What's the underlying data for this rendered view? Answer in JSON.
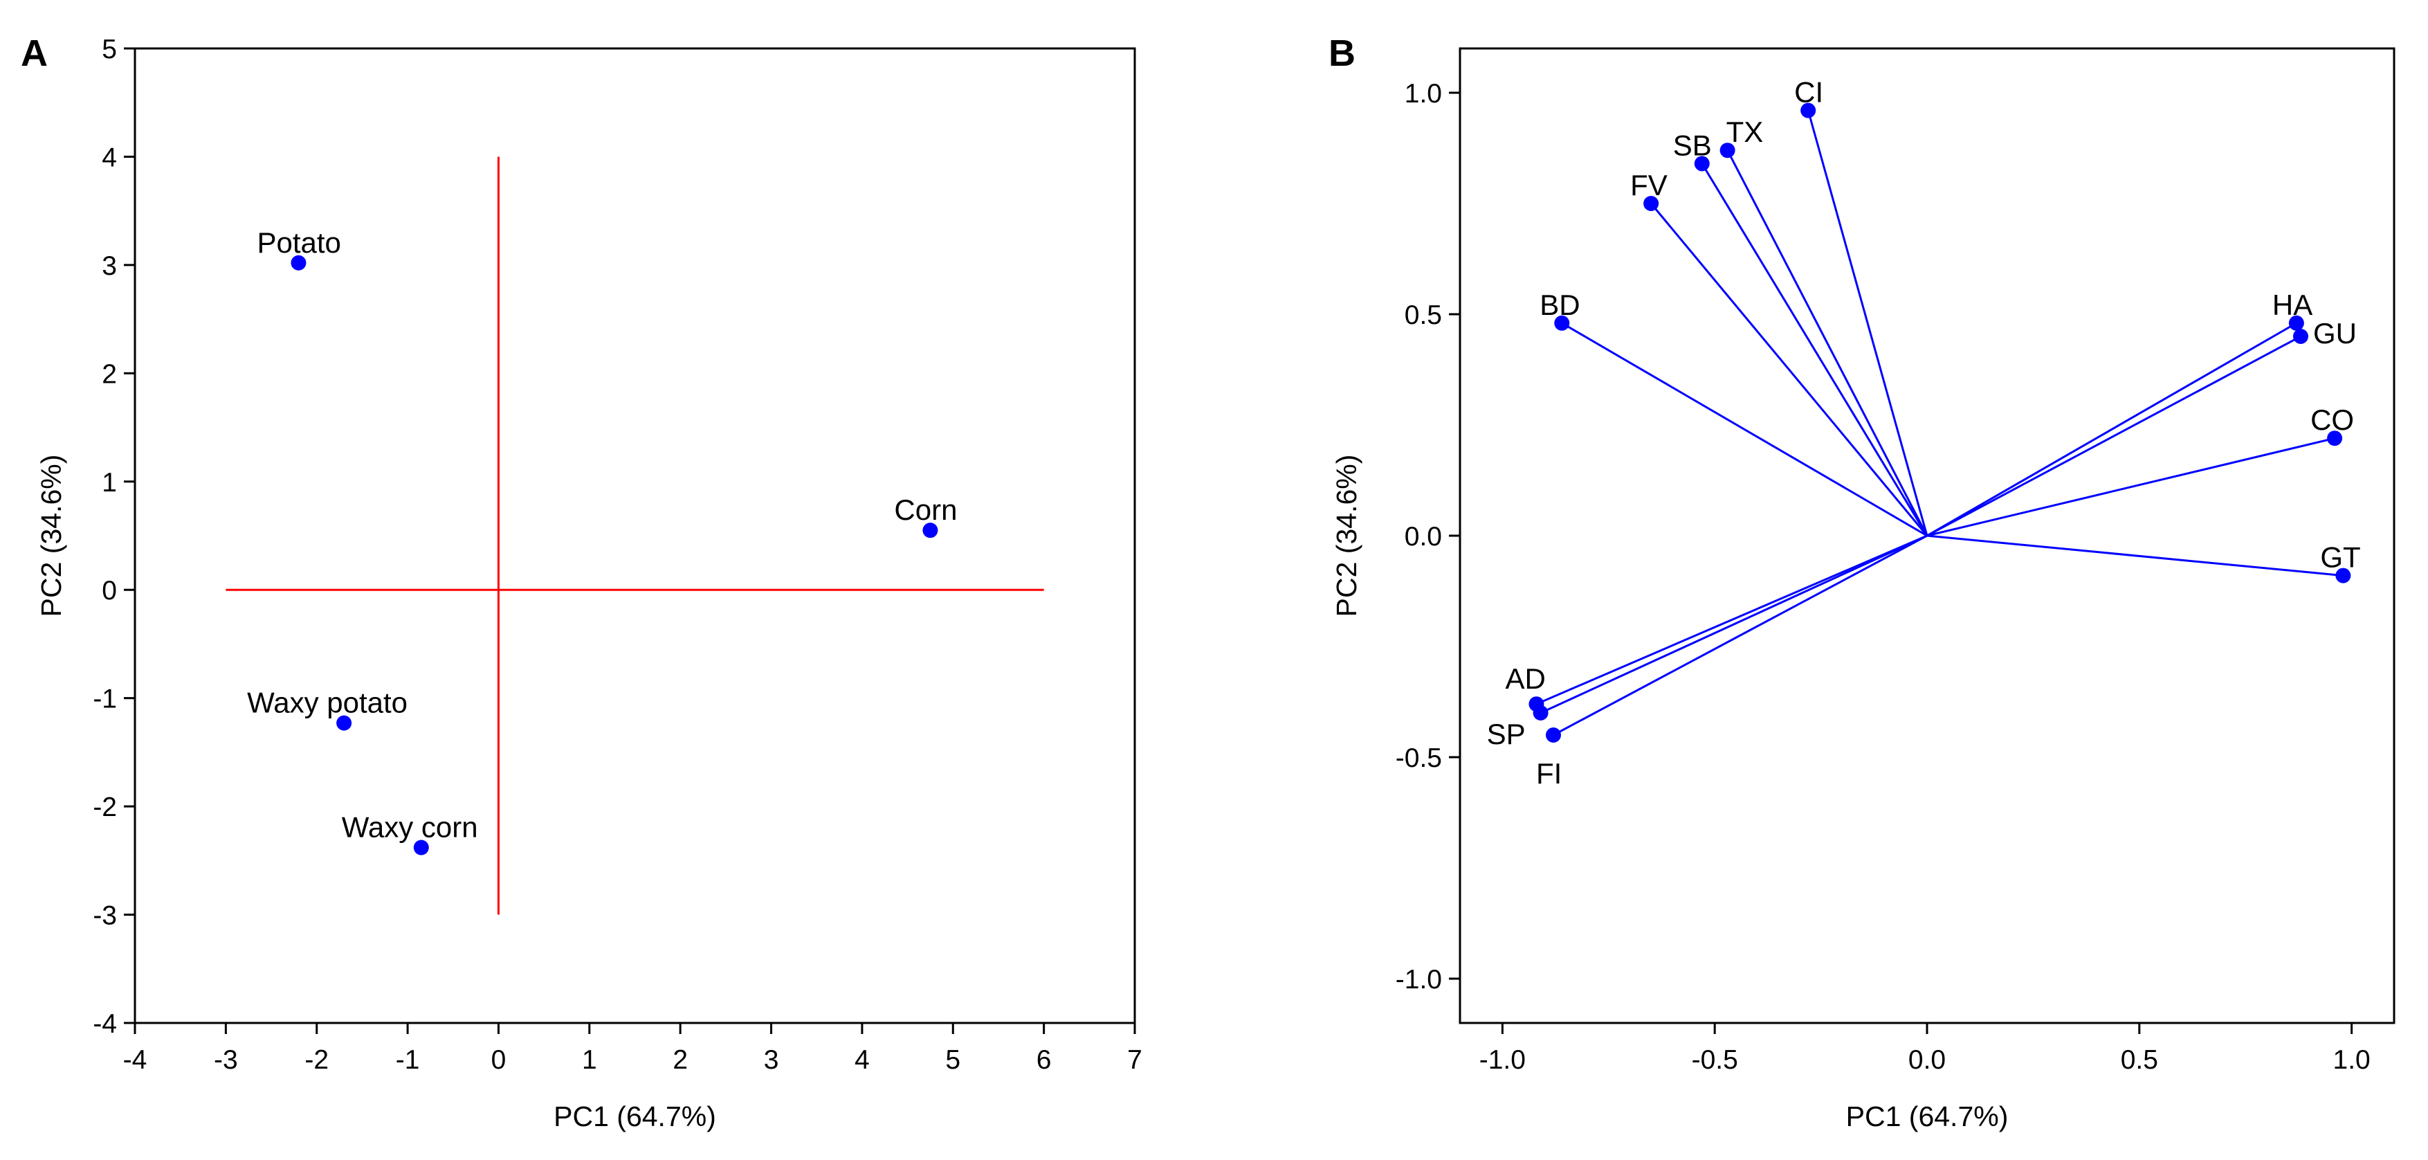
{
  "chart_data": [
    {
      "type": "scatter",
      "panel": "A",
      "xlabel": "PC1 (64.7%)",
      "ylabel": "PC2 (34.6%)",
      "xlim": [
        -4,
        7
      ],
      "ylim": [
        -4,
        5
      ],
      "xticks": [
        -4,
        -3,
        -2,
        -1,
        0,
        1,
        2,
        3,
        4,
        5,
        6,
        7
      ],
      "yticks": [
        -4,
        -3,
        -2,
        -1,
        0,
        1,
        2,
        3,
        4,
        5
      ],
      "xtick_labels": [
        "-4",
        "-3",
        "-2",
        "-1",
        "0",
        "1",
        "2",
        "3",
        "4",
        "5",
        "6",
        "7"
      ],
      "ytick_labels": [
        "-4",
        "-3",
        "-2",
        "-1",
        "0",
        "1",
        "2",
        "3",
        "4",
        "5"
      ],
      "reference_lines": {
        "horizontal": {
          "y": 0,
          "x_from": -3,
          "x_to": 6
        },
        "vertical": {
          "x": 0,
          "y_from": -3,
          "y_to": 4
        },
        "color": "#ff0000"
      },
      "point_color": "#0000ff",
      "points": [
        {
          "label": "Potato",
          "x": -2.2,
          "y": 3.02
        },
        {
          "label": "Corn",
          "x": 4.75,
          "y": 0.55
        },
        {
          "label": "Waxy potato",
          "x": -1.7,
          "y": -1.23
        },
        {
          "label": "Waxy corn",
          "x": -0.85,
          "y": -2.38
        }
      ]
    },
    {
      "type": "biplot-loadings",
      "panel": "B",
      "xlabel": "PC1 (64.7%)",
      "ylabel": "PC2 (34.6%)",
      "xlim": [
        -1.1,
        1.1
      ],
      "ylim": [
        -1.1,
        1.1
      ],
      "xticks": [
        -1.0,
        -0.5,
        0.0,
        0.5,
        1.0
      ],
      "yticks": [
        -1.0,
        -0.5,
        0.0,
        0.5,
        1.0
      ],
      "xtick_labels": [
        "-1.0",
        "-0.5",
        "0.0",
        "0.5",
        "1.0"
      ],
      "ytick_labels": [
        "-1.0",
        "-0.5",
        "0.0",
        "0.5",
        "1.0"
      ],
      "vector_color": "#0000ff",
      "points": [
        {
          "label": "CI",
          "x": -0.28,
          "y": 0.96
        },
        {
          "label": "TX",
          "x": -0.47,
          "y": 0.87
        },
        {
          "label": "SB",
          "x": -0.53,
          "y": 0.84
        },
        {
          "label": "FV",
          "x": -0.65,
          "y": 0.75
        },
        {
          "label": "BD",
          "x": -0.86,
          "y": 0.48
        },
        {
          "label": "HA",
          "x": 0.87,
          "y": 0.48
        },
        {
          "label": "GU",
          "x": 0.88,
          "y": 0.45
        },
        {
          "label": "CO",
          "x": 0.96,
          "y": 0.22
        },
        {
          "label": "GT",
          "x": 0.98,
          "y": -0.09
        },
        {
          "label": "AD",
          "x": -0.92,
          "y": -0.38
        },
        {
          "label": "SP",
          "x": -0.91,
          "y": -0.4
        },
        {
          "label": "FI",
          "x": -0.88,
          "y": -0.45
        }
      ]
    }
  ]
}
